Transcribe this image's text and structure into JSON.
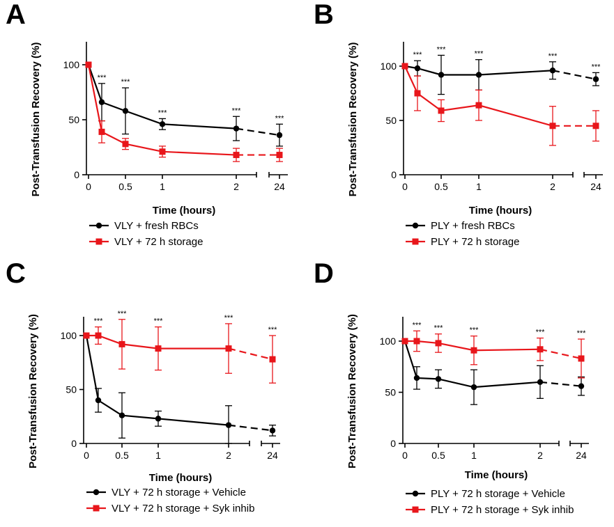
{
  "figure": {
    "colors": {
      "black": "#000000",
      "red": "#e8161b"
    }
  },
  "chart_data": [
    {
      "panel": "A",
      "type": "line",
      "ylabel": "Post-Transfusion Recovery (%)",
      "xlabel": "Time (hours)",
      "x": [
        0,
        0.17,
        0.5,
        1,
        2,
        24
      ],
      "x_tick_labels": [
        "0",
        "0.5",
        "1",
        "2",
        "24"
      ],
      "x_tick_values": [
        0,
        0.5,
        1,
        2,
        24
      ],
      "y_ticks": [
        0,
        50,
        100
      ],
      "ylim": [
        0,
        120
      ],
      "series": [
        {
          "name": "VLY + fresh RBCs",
          "color": "#000000",
          "marker": "circle",
          "values": [
            100,
            66,
            58,
            46,
            42,
            36
          ],
          "err": [
            0,
            17,
            21,
            5,
            11,
            10
          ]
        },
        {
          "name": "VLY + 72 h storage",
          "color": "#e8161b",
          "marker": "square",
          "values": [
            100,
            39,
            28,
            21,
            18,
            18
          ],
          "err": [
            0,
            10,
            5,
            5,
            6,
            6
          ]
        }
      ],
      "significance": [
        null,
        "***",
        "***",
        "***",
        "***",
        "***"
      ],
      "sig_above_series": 1
    },
    {
      "panel": "B",
      "type": "line",
      "ylabel": "Post-Transfusion Recovery (%)",
      "xlabel": "Time (hours)",
      "x": [
        0,
        0.17,
        0.5,
        1,
        2,
        24
      ],
      "x_tick_labels": [
        "0",
        "0.5",
        "1",
        "2",
        "24"
      ],
      "x_tick_values": [
        0,
        0.5,
        1,
        2,
        24
      ],
      "y_ticks": [
        0,
        50,
        100
      ],
      "ylim": [
        0,
        120
      ],
      "series": [
        {
          "name": "PLY + fresh RBCs",
          "color": "#000000",
          "marker": "circle",
          "values": [
            100,
            98,
            92,
            92,
            96,
            88
          ],
          "err": [
            0,
            7,
            18,
            14,
            8,
            6
          ]
        },
        {
          "name": "PLY + 72 h storage",
          "color": "#e8161b",
          "marker": "square",
          "values": [
            100,
            75,
            59,
            64,
            45,
            45
          ],
          "err": [
            0,
            16,
            10,
            14,
            18,
            14
          ]
        }
      ],
      "significance": [
        null,
        "***",
        "***",
        "***",
        "***",
        "***"
      ],
      "sig_above_series": 1
    },
    {
      "panel": "C",
      "type": "line",
      "ylabel": "Post-Transfusion Recovery (%)",
      "xlabel": "Time (hours)",
      "x": [
        0,
        0.17,
        0.5,
        1,
        2,
        24
      ],
      "x_tick_labels": [
        "0",
        "0.5",
        "1",
        "2",
        "24"
      ],
      "x_tick_values": [
        0,
        0.5,
        1,
        2,
        24
      ],
      "y_ticks": [
        0,
        50,
        100
      ],
      "ylim": [
        0,
        120
      ],
      "series": [
        {
          "name": "VLY + 72 h storage + Vehicle",
          "color": "#000000",
          "marker": "circle",
          "values": [
            100,
            40,
            26,
            23,
            17,
            12
          ],
          "err": [
            0,
            11,
            21,
            7,
            18,
            5
          ]
        },
        {
          "name": "VLY + 72 h storage + Syk inhib",
          "color": "#e8161b",
          "marker": "square",
          "values": [
            100,
            100,
            92,
            88,
            88,
            78
          ],
          "err": [
            0,
            8,
            23,
            20,
            23,
            22
          ]
        }
      ],
      "significance": [
        null,
        "***",
        "***",
        "***",
        "***",
        "***"
      ],
      "sig_above_series": 1
    },
    {
      "panel": "D",
      "type": "line",
      "ylabel": "Post-Transfusion Recovery (%)",
      "xlabel": "Time (hours)",
      "x": [
        0,
        0.17,
        0.5,
        1,
        2,
        24
      ],
      "x_tick_labels": [
        "0",
        "0.5",
        "1",
        "2",
        "24"
      ],
      "x_tick_values": [
        0,
        0.5,
        1,
        2,
        24
      ],
      "y_ticks": [
        0,
        50,
        100
      ],
      "ylim": [
        0,
        120
      ],
      "series": [
        {
          "name": "PLY + 72 h storage + Vehicle",
          "color": "#000000",
          "marker": "circle",
          "values": [
            100,
            64,
            63,
            55,
            60,
            56
          ],
          "err": [
            0,
            11,
            9,
            17,
            16,
            9
          ]
        },
        {
          "name": "PLY + 72 h storage + Syk inhib",
          "color": "#e8161b",
          "marker": "square",
          "values": [
            100,
            100,
            98,
            91,
            92,
            83
          ],
          "err": [
            0,
            10,
            9,
            14,
            11,
            19
          ]
        }
      ],
      "significance": [
        null,
        "***",
        "***",
        "***",
        "***",
        "***"
      ],
      "sig_above_series": 1
    }
  ]
}
